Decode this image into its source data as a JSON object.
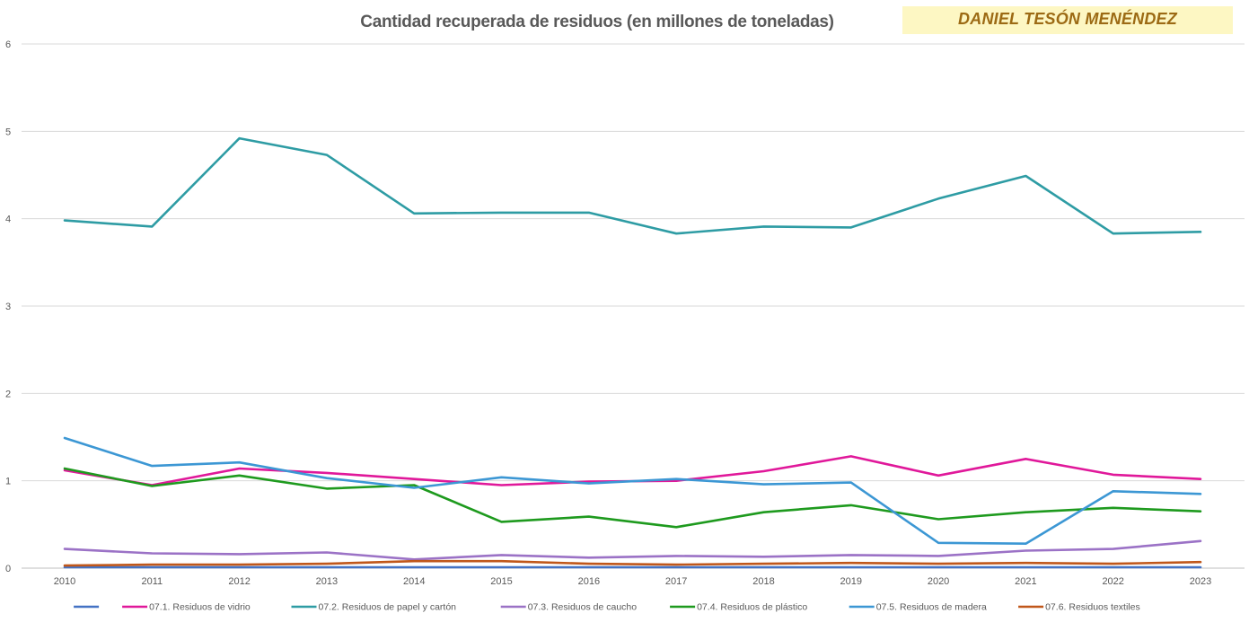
{
  "author": "DANIEL TESÓN MENÉNDEZ",
  "chart_data": {
    "type": "line",
    "title": "Cantidad recuperada de residuos (en millones de toneladas)",
    "xlabel": "",
    "ylabel": "",
    "ylim": [
      0,
      6
    ],
    "yticks": [
      "0",
      "1",
      "2",
      "3",
      "4",
      "5",
      "6"
    ],
    "grid": true,
    "legend": "bottom",
    "categories": [
      "2010",
      "2011",
      "2012",
      "2013",
      "2014",
      "2015",
      "2016",
      "2017",
      "2018",
      "2019",
      "2020",
      "2021",
      "2022",
      "2023"
    ],
    "series": [
      {
        "name": "",
        "color": "#4472c4",
        "values": [
          0.01,
          0.01,
          0.01,
          0.01,
          0.01,
          0.01,
          0.01,
          0.01,
          0.01,
          0.01,
          0.01,
          0.01,
          0.01,
          0.01
        ]
      },
      {
        "name": "07.1. Residuos de vidrio",
        "color": "#e0189a",
        "values": [
          1.12,
          0.95,
          1.14,
          1.09,
          1.02,
          0.95,
          0.99,
          1.0,
          1.11,
          1.28,
          1.06,
          1.25,
          1.07,
          1.02
        ]
      },
      {
        "name": "07.2. Residuos de papel y cartón",
        "color": "#2e9ca4",
        "values": [
          3.98,
          3.91,
          4.92,
          4.73,
          4.06,
          4.07,
          4.07,
          3.83,
          3.91,
          3.9,
          4.23,
          4.49,
          3.83,
          3.85
        ]
      },
      {
        "name": "07.3. Residuos de caucho",
        "color": "#9b72c6",
        "values": [
          0.22,
          0.17,
          0.16,
          0.18,
          0.1,
          0.15,
          0.12,
          0.14,
          0.13,
          0.15,
          0.14,
          0.2,
          0.22,
          0.31
        ]
      },
      {
        "name": "07.4. Residuos de plástico",
        "color": "#1e9a1e",
        "values": [
          1.14,
          0.94,
          1.06,
          0.91,
          0.95,
          0.53,
          0.59,
          0.47,
          0.64,
          0.72,
          0.56,
          0.64,
          0.69,
          0.65
        ]
      },
      {
        "name": "07.5. Residuos de madera",
        "color": "#3c97d4",
        "values": [
          1.49,
          1.17,
          1.21,
          1.03,
          0.92,
          1.04,
          0.97,
          1.02,
          0.96,
          0.98,
          0.29,
          0.28,
          0.88,
          0.85
        ]
      },
      {
        "name": "07.6. Residuos textiles",
        "color": "#c0571a",
        "values": [
          0.03,
          0.04,
          0.04,
          0.05,
          0.08,
          0.08,
          0.05,
          0.04,
          0.05,
          0.06,
          0.05,
          0.06,
          0.05,
          0.07
        ]
      }
    ]
  }
}
